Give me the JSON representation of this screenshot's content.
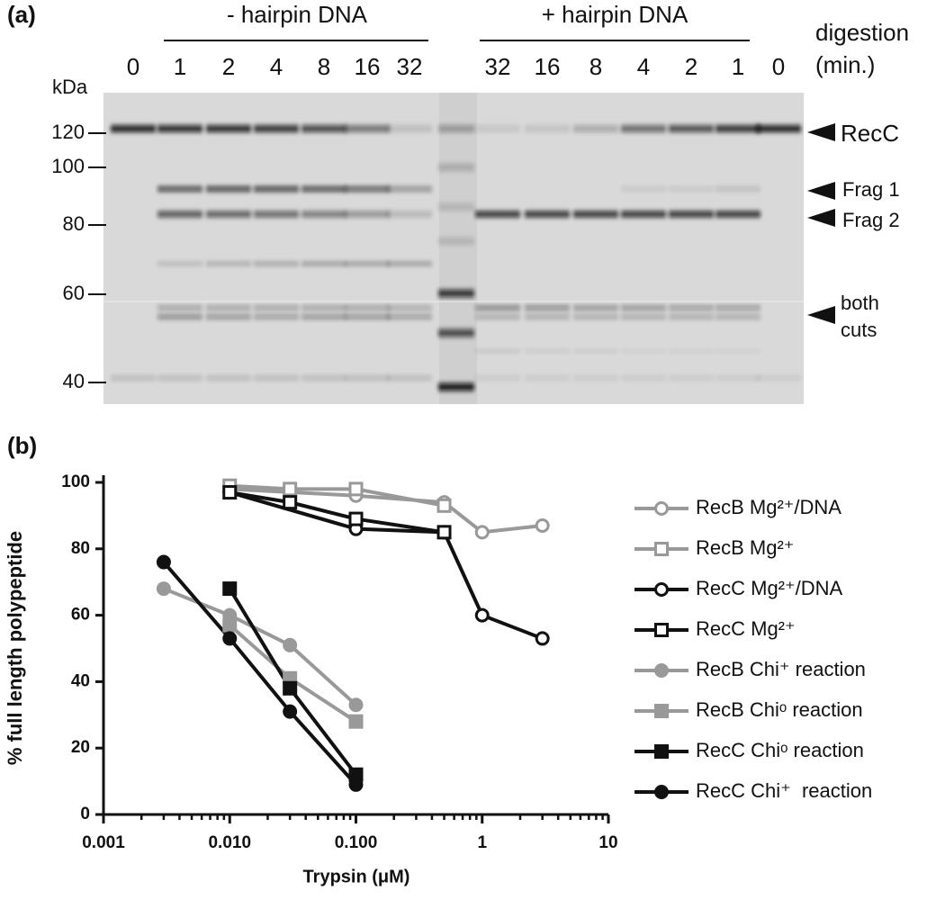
{
  "gel": {
    "panel_label": "(a)",
    "groups": [
      "- hairpin DNA",
      "+ hairpin DNA"
    ],
    "lanes": [
      "0",
      "1",
      "2",
      "4",
      "8",
      "16",
      "32",
      "32",
      "16",
      "8",
      "4",
      "2",
      "1",
      "0"
    ],
    "digestion": [
      "digestion",
      "(min.)"
    ],
    "kda_label": "kDa",
    "markers": [
      120,
      100,
      80,
      60,
      40
    ],
    "band_labels": [
      "RecC",
      "Frag 1",
      "Frag 2"
    ],
    "both_cuts": [
      "both",
      "cuts"
    ]
  },
  "chart_data": {
    "type": "line",
    "panel_label": "(b)",
    "x_label": "Trypsin (μM)",
    "y_label": "% full length polypeptide",
    "x_scale": "log",
    "xlim": [
      0.001,
      10
    ],
    "xticks": [
      0.001,
      {
        "value": 0.01,
        "label": "0.010"
      },
      {
        "value": 0.1,
        "label": "0.100"
      },
      1,
      10
    ],
    "ylim": [
      0,
      100
    ],
    "yticks": [
      0,
      20,
      40,
      60,
      80,
      100
    ],
    "series": [
      {
        "name": "RecB Mg²⁺/DNA",
        "color": "#999999",
        "marker": "circle",
        "filled": false,
        "x": [
          0.01,
          0.1,
          0.5,
          1,
          3
        ],
        "values": [
          98,
          96,
          94,
          85,
          87
        ]
      },
      {
        "name": "RecB Mg²⁺",
        "color": "#999999",
        "marker": "square",
        "filled": false,
        "x": [
          0.01,
          0.03,
          0.1,
          0.5
        ],
        "values": [
          99,
          98,
          98,
          93
        ]
      },
      {
        "name": "RecC Mg²⁺/DNA",
        "color": "#111111",
        "marker": "circle",
        "filled": false,
        "x": [
          0.01,
          0.1,
          0.5,
          1,
          3
        ],
        "values": [
          97,
          86,
          85,
          60,
          53
        ]
      },
      {
        "name": "RecC Mg²⁺",
        "color": "#111111",
        "marker": "square",
        "filled": false,
        "x": [
          0.01,
          0.03,
          0.1,
          0.5
        ],
        "values": [
          97,
          94,
          89,
          85
        ]
      },
      {
        "name": "RecB Chi⁺ reaction",
        "color": "#999999",
        "marker": "circle",
        "filled": true,
        "x": [
          0.003,
          0.01,
          0.03,
          0.1
        ],
        "values": [
          68,
          60,
          51,
          33
        ]
      },
      {
        "name": "RecB Chiᵒ reaction",
        "color": "#999999",
        "marker": "square",
        "filled": true,
        "x": [
          0.01,
          0.03,
          0.1
        ],
        "values": [
          57,
          41,
          28
        ]
      },
      {
        "name": "RecC Chiᵒ reaction",
        "color": "#111111",
        "marker": "square",
        "filled": true,
        "x": [
          0.01,
          0.03,
          0.1
        ],
        "values": [
          68,
          38,
          12
        ]
      },
      {
        "name": "RecC Chi⁺  reaction",
        "color": "#111111",
        "marker": "circle",
        "filled": true,
        "x": [
          0.003,
          0.01,
          0.03,
          0.1
        ],
        "values": [
          76,
          53,
          31,
          9
        ]
      }
    ]
  }
}
